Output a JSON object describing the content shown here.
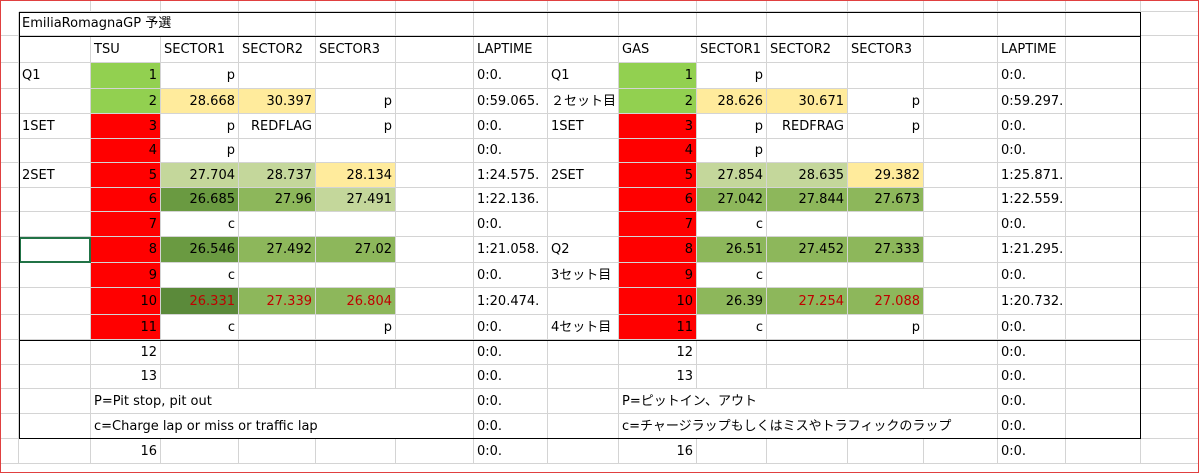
{
  "title": "EmiliaRomagnaGP 予選",
  "headers": [
    "",
    "TSU",
    "SECTOR1",
    "SECTOR2",
    "SECTOR3",
    "",
    "LAPTIME",
    "",
    "GAS",
    "SECTOR1",
    "SECTOR2",
    "SECTOR3",
    "",
    "LAPTIME"
  ],
  "colors": {
    "lap_red": "#ff0000",
    "lap_green": "#92d050",
    "sector_yellow": "#ffeb9c",
    "sector_light_green": "#c4d79b",
    "sector_mid_green": "#8db75b",
    "sector_dark_green": "#6a9a41",
    "sector_darkest_green": "#5b8a3a",
    "purple_text": "#c00000"
  },
  "rows": [
    {
      "cells": [
        "Q1",
        "1",
        "p",
        "",
        "",
        "",
        "0:0.",
        "Q1",
        "1",
        "p",
        "",
        "",
        "",
        "0:0."
      ],
      "fills": [
        "",
        "lap_green",
        "",
        "",
        "",
        "",
        "",
        "",
        "lap_green",
        "",
        "",
        "",
        "",
        ""
      ]
    },
    {
      "cells": [
        "",
        "2",
        "28.668",
        "30.397",
        "p",
        "",
        "0:59.065.",
        "２セット目",
        "2",
        "28.626",
        "30.671",
        "p",
        "",
        "0:59.297."
      ],
      "fills": [
        "",
        "lap_green",
        "sector_yellow",
        "sector_yellow",
        "",
        "",
        "",
        "",
        "lap_green",
        "sector_yellow",
        "sector_yellow",
        "",
        "",
        ""
      ]
    },
    {
      "cells": [
        "1SET",
        "3",
        "p",
        "REDFLAG",
        "p",
        "",
        "0:0.",
        "1SET",
        "3",
        "p",
        "REDFRAG",
        "p",
        "",
        "0:0."
      ],
      "fills": [
        "",
        "lap_red",
        "",
        "",
        "",
        "",
        "",
        "",
        "lap_red",
        "",
        "",
        "",
        "",
        ""
      ]
    },
    {
      "cells": [
        "",
        "4",
        "p",
        "",
        "",
        "",
        "0:0.",
        "",
        "4",
        "p",
        "",
        "",
        "",
        "0:0."
      ],
      "fills": [
        "",
        "lap_red",
        "",
        "",
        "",
        "",
        "",
        "",
        "lap_red",
        "",
        "",
        "",
        "",
        ""
      ]
    },
    {
      "cells": [
        "2SET",
        "5",
        "27.704",
        "28.737",
        "28.134",
        "",
        "1:24.575.",
        "2SET",
        "5",
        "27.854",
        "28.635",
        "29.382",
        "",
        "1:25.871."
      ],
      "fills": [
        "",
        "lap_red",
        "sector_light_green",
        "sector_light_green",
        "sector_yellow",
        "",
        "",
        "",
        "lap_red",
        "sector_light_green",
        "sector_light_green",
        "sector_yellow",
        "",
        ""
      ]
    },
    {
      "cells": [
        "",
        "6",
        "26.685",
        "27.96",
        "27.491",
        "",
        "1:22.136.",
        "",
        "6",
        "27.042",
        "27.844",
        "27.673",
        "",
        "1:22.559."
      ],
      "fills": [
        "",
        "lap_red",
        "sector_dark_green",
        "sector_mid_green",
        "sector_light_green",
        "",
        "",
        "",
        "lap_red",
        "sector_mid_green",
        "sector_mid_green",
        "sector_mid_green",
        "",
        ""
      ]
    },
    {
      "cells": [
        "",
        "7",
        "c",
        "",
        "",
        "",
        "0:0.",
        "",
        "7",
        "c",
        "",
        "",
        "",
        "0:0."
      ],
      "fills": [
        "",
        "lap_red",
        "",
        "",
        "",
        "",
        "",
        "",
        "lap_red",
        "",
        "",
        "",
        "",
        ""
      ]
    },
    {
      "cells": [
        "",
        "8",
        "26.546",
        "27.492",
        "27.02",
        "",
        "1:21.058.",
        "Q2",
        "8",
        "26.51",
        "27.452",
        "27.333",
        "",
        "1:21.295."
      ],
      "fills": [
        "",
        "lap_red",
        "sector_dark_green",
        "sector_mid_green",
        "sector_mid_green",
        "",
        "",
        "",
        "lap_red",
        "sector_mid_green",
        "sector_mid_green",
        "sector_mid_green",
        "",
        ""
      ]
    },
    {
      "cells": [
        "",
        "9",
        "c",
        "",
        "",
        "",
        "0:0.",
        "3セット目",
        "9",
        "c",
        "",
        "",
        "",
        "0:0."
      ],
      "fills": [
        "",
        "lap_red",
        "",
        "",
        "",
        "",
        "",
        "",
        "lap_red",
        "",
        "",
        "",
        "",
        ""
      ]
    },
    {
      "cells": [
        "",
        "10",
        "26.331",
        "27.339",
        "26.804",
        "",
        "1:20.474.",
        "",
        "10",
        "26.39",
        "27.254",
        "27.088",
        "",
        "1:20.732."
      ],
      "fills": [
        "",
        "lap_red",
        "sector_darkest_green",
        "sector_mid_green",
        "sector_mid_green",
        "",
        "",
        "",
        "lap_red",
        "sector_mid_green",
        "sector_mid_green",
        "sector_mid_green",
        "",
        ""
      ],
      "red_text": [
        2,
        3,
        4,
        10,
        11,
        12
      ]
    },
    {
      "cells": [
        "",
        "11",
        "c",
        "",
        "p",
        "",
        "0:0.",
        "4セット目",
        "11",
        "c",
        "",
        "p",
        "",
        "0:0."
      ],
      "fills": [
        "",
        "lap_red",
        "",
        "",
        "",
        "",
        "",
        "",
        "lap_red",
        "",
        "",
        "",
        "",
        ""
      ]
    },
    {
      "cells": [
        "",
        "12",
        "",
        "",
        "",
        "",
        "0:0.",
        "",
        "12",
        "",
        "",
        "",
        "",
        "0:0."
      ],
      "fills": [
        "",
        "",
        "",
        "",
        "",
        "",
        "",
        "",
        "",
        "",
        "",
        "",
        "",
        ""
      ]
    },
    {
      "cells": [
        "",
        "13",
        "",
        "",
        "",
        "",
        "0:0.",
        "",
        "13",
        "",
        "",
        "",
        "",
        "0:0."
      ],
      "fills": [
        "",
        "",
        "",
        "",
        "",
        "",
        "",
        "",
        "",
        "",
        "",
        "",
        "",
        ""
      ]
    },
    {
      "cells": [
        "",
        "P=Pit stop, pit out",
        "",
        "",
        "",
        "",
        "0:0.",
        "",
        "P=ピットイン、アウト",
        "",
        "",
        "",
        "",
        "0:0."
      ],
      "fills": [
        "",
        "",
        "",
        "",
        "",
        "",
        "",
        "",
        "",
        "",
        "",
        "",
        "",
        ""
      ],
      "left_note": true
    },
    {
      "cells": [
        "",
        "c=Charge lap or miss or traffic lap",
        "",
        "",
        "",
        "",
        "0:0.",
        "",
        "c=チャージラップもしくはミスやトラフィックのラップ",
        "",
        "",
        "",
        "",
        "0:0."
      ],
      "fills": [
        "",
        "",
        "",
        "",
        "",
        "",
        "",
        "",
        "",
        "",
        "",
        "",
        "",
        ""
      ],
      "left_note": true
    },
    {
      "cells": [
        "",
        "16",
        "",
        "",
        "",
        "",
        "0:0.",
        "",
        "16",
        "",
        "",
        "",
        "",
        "0:0."
      ],
      "fills": [
        "",
        "",
        "",
        "",
        "",
        "",
        "",
        "",
        "",
        "",
        "",
        "",
        "",
        ""
      ]
    },
    {
      "cells": [
        "",
        "",
        "",
        "",
        "",
        "",
        "",
        "",
        "",
        "",
        "",
        "",
        "",
        ""
      ],
      "fills": [
        "",
        "",
        "",
        "",
        "",
        "",
        "",
        "",
        "",
        "",
        "",
        "",
        "",
        ""
      ]
    }
  ],
  "selected_cell": "row7-col0"
}
